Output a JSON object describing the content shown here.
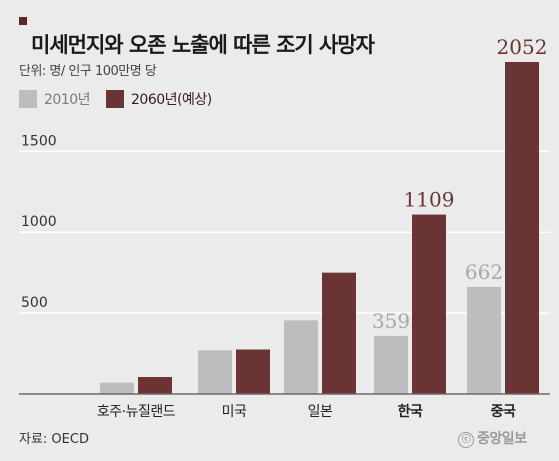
{
  "title": "미세먼지와 오존 노출에 따른 조기 사망자",
  "unit": "단위: 명/ 인구 100만명 당",
  "source": "자료: OECD",
  "logo": "중앙일보",
  "colors": {
    "y2010": "#bdbdbd",
    "y2060": "#6b3434",
    "axis": "#6b6b6b",
    "grid": "#ffffff",
    "background": "#ebebeb",
    "value_label": "#a8a8a8",
    "value_label_hi": "#6b3434"
  },
  "chart_data": {
    "type": "bar",
    "categories": [
      "호주·뉴질랜드",
      "미국",
      "일본",
      "한국",
      "중국"
    ],
    "bold_categories": [
      "한국",
      "중국"
    ],
    "series": [
      {
        "name": "2010년",
        "values": [
          70,
          270,
          455,
          359,
          662
        ]
      },
      {
        "name": "2060년(예상)",
        "values": [
          105,
          275,
          750,
          1109,
          2052
        ]
      }
    ],
    "data_labels": [
      {
        "category": "한국",
        "series": "2010년",
        "text": "359"
      },
      {
        "category": "한국",
        "series": "2060년(예상)",
        "text": "1109"
      },
      {
        "category": "중국",
        "series": "2010년",
        "text": "662"
      },
      {
        "category": "중국",
        "series": "2060년(예상)",
        "text": "2052"
      }
    ],
    "yticks": [
      500,
      1000,
      1500
    ],
    "ylim": [
      0,
      2052
    ],
    "grid": true,
    "legend": "top-left"
  }
}
